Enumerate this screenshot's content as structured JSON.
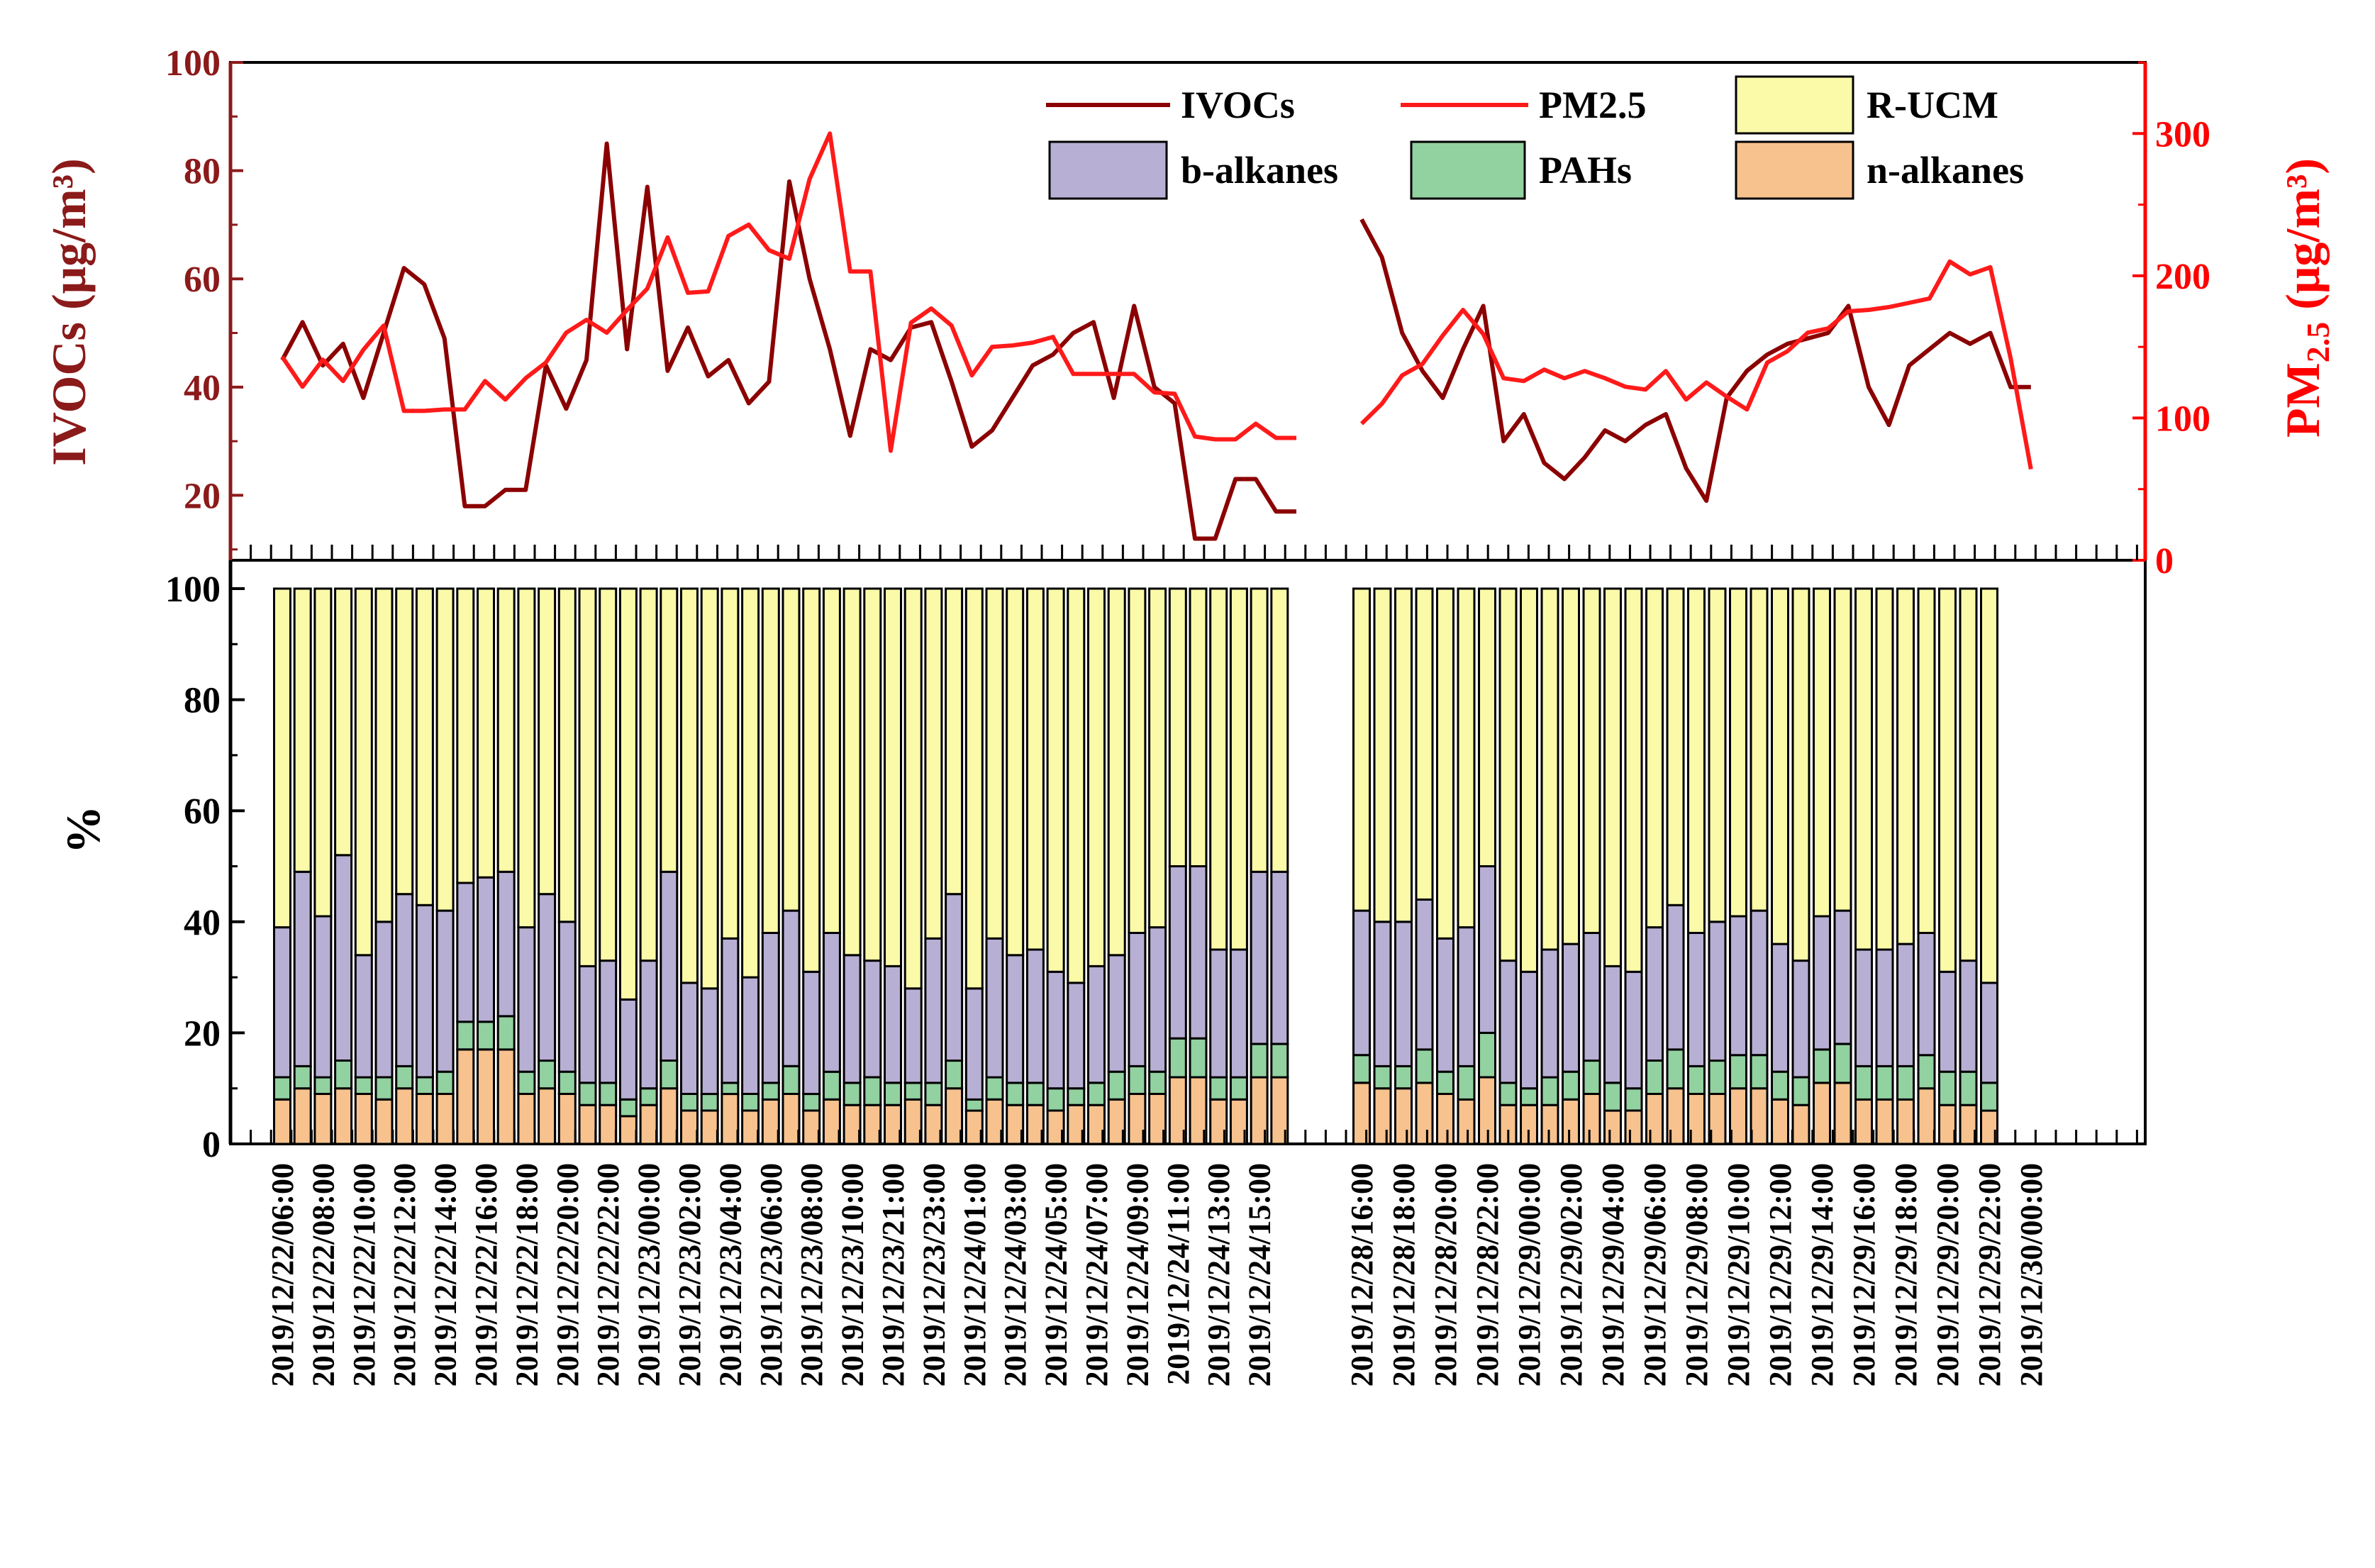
{
  "chart_data": [
    {
      "id": "top",
      "type": "line",
      "ylabel_left": "IVOCs (μg/m³)",
      "ylabel_right_main": "PM",
      "ylabel_right_sub": "2.5",
      "ylabel_right_unit": " (μg/m³)",
      "ylim_left": [
        8,
        100
      ],
      "yticks_left": [
        "20",
        "40",
        "60",
        "80",
        "100"
      ],
      "ylim_right": [
        0,
        350
      ],
      "yticks_right": [
        "0",
        "100",
        "200",
        "300"
      ],
      "colors": {
        "ivocs": "#8b0000",
        "pm25": "#ff1a1a",
        "axis_left": "#8b1a1a",
        "axis_right": "#ff0000"
      },
      "series": [
        {
          "name": "IVOCs",
          "segments": [
            {
              "x_start": 0,
              "values": [
                45,
                52,
                44,
                48,
                38,
                50,
                62,
                59,
                49,
                18,
                18,
                21,
                21,
                44,
                36,
                45,
                85,
                47,
                77,
                43,
                51,
                42,
                45,
                37,
                41,
                78,
                60,
                47,
                31,
                47,
                45,
                51,
                52,
                41,
                29,
                32,
                38,
                44,
                46,
                50,
                52,
                38,
                55,
                40,
                37,
                12,
                12,
                23,
                23,
                17,
                17
              ]
            },
            {
              "x_start": 53,
              "values": [
                71,
                64,
                50,
                43,
                38,
                47,
                55,
                30,
                35,
                26,
                23,
                27,
                32,
                30,
                33,
                35,
                25,
                19,
                38,
                43,
                46,
                48,
                49,
                50,
                55,
                40,
                33,
                44,
                47,
                50,
                48,
                50,
                40,
                40
              ]
            }
          ]
        },
        {
          "name": "PM2.5",
          "segments": [
            {
              "x_start": 0,
              "values": [
                143,
                122,
                141,
                126,
                148,
                165,
                105,
                105,
                106,
                106,
                126,
                113,
                128,
                139,
                160,
                169,
                160,
                176,
                191,
                227,
                188,
                189,
                228,
                236,
                218,
                212,
                268,
                300,
                203,
                203,
                77,
                167,
                177,
                165,
                130,
                150,
                151,
                153,
                157,
                131,
                131,
                131,
                131,
                118,
                117,
                87,
                85,
                85,
                96,
                86,
                86
              ]
            },
            {
              "x_start": 53,
              "values": [
                96,
                110,
                130,
                138,
                158,
                176,
                159,
                128,
                126,
                134,
                128,
                133,
                128,
                122,
                120,
                133,
                113,
                125,
                115,
                106,
                139,
                147,
                160,
                163,
                175,
                176,
                178,
                181,
                184,
                210,
                201,
                206,
                142,
                64
              ]
            }
          ]
        }
      ]
    },
    {
      "id": "bottom",
      "type": "bar",
      "stacked": true,
      "ylabel": "%",
      "ylim": [
        0,
        100
      ],
      "yticks": [
        "0",
        "20",
        "40",
        "60",
        "80",
        "100"
      ],
      "category_labels_left": [
        "2019/12/22/06:00",
        "2019/12/22/08:00",
        "2019/12/22/10:00",
        "2019/12/22/12:00",
        "2019/12/22/14:00",
        "2019/12/22/16:00",
        "2019/12/22/18:00",
        "2019/12/22/20:00",
        "2019/12/22/22:00",
        "2019/12/23/00:00",
        "2019/12/23/02:00",
        "2019/12/23/04:00",
        "2019/12/23/06:00",
        "2019/12/23/08:00",
        "2019/12/23/10:00",
        "2019/12/23/21:00",
        "2019/12/23/23:00",
        "2019/12/24/01:00",
        "2019/12/24/03:00",
        "2019/12/24/05:00",
        "2019/12/24/07:00",
        "2019/12/24/09:00",
        "2019/12/24/11:00",
        "2019/12/24/13:00",
        "2019/12/24/15:00"
      ],
      "category_labels_right": [
        "2019/12/28/16:00",
        "2019/12/28/18:00",
        "2019/12/28/20:00",
        "2019/12/28/22:00",
        "2019/12/29/00:00",
        "2019/12/29/02:00",
        "2019/12/29/04:00",
        "2019/12/29/06:00",
        "2019/12/29/08:00",
        "2019/12/29/10:00",
        "2019/12/29/12:00",
        "2019/12/29/14:00",
        "2019/12/29/16:00",
        "2019/12/29/18:00",
        "2019/12/29/20:00",
        "2019/12/29/22:00",
        "2019/12/30/00:00"
      ],
      "colors": {
        "n-alkanes": "#f7c28e",
        "PAHs": "#92d1a0",
        "b-alkanes": "#b8afd4",
        "R-UCM": "#fafaa8"
      },
      "groups": [
        {
          "bars": [
            [
              8,
              4,
              27
            ],
            [
              10,
              4,
              35
            ],
            [
              9,
              3,
              29
            ],
            [
              10,
              5,
              37
            ],
            [
              9,
              3,
              22
            ],
            [
              8,
              4,
              28
            ],
            [
              10,
              4,
              31
            ],
            [
              9,
              3,
              31
            ],
            [
              9,
              4,
              29
            ],
            [
              17,
              5,
              25
            ],
            [
              17,
              5,
              26
            ],
            [
              17,
              6,
              26
            ],
            [
              9,
              4,
              26
            ],
            [
              10,
              5,
              30
            ],
            [
              9,
              4,
              27
            ],
            [
              7,
              4,
              21
            ],
            [
              7,
              4,
              22
            ],
            [
              5,
              3,
              18
            ],
            [
              7,
              3,
              23
            ],
            [
              10,
              5,
              34
            ],
            [
              6,
              3,
              20
            ],
            [
              6,
              3,
              19
            ],
            [
              9,
              2,
              26
            ],
            [
              6,
              3,
              21
            ],
            [
              8,
              3,
              27
            ],
            [
              9,
              5,
              28
            ],
            [
              6,
              3,
              22
            ],
            [
              8,
              5,
              25
            ],
            [
              7,
              4,
              23
            ],
            [
              7,
              5,
              21
            ],
            [
              7,
              4,
              21
            ],
            [
              8,
              3,
              17
            ],
            [
              7,
              4,
              26
            ],
            [
              10,
              5,
              30
            ],
            [
              6,
              2,
              20
            ],
            [
              8,
              4,
              25
            ],
            [
              7,
              4,
              23
            ],
            [
              7,
              4,
              24
            ],
            [
              6,
              4,
              21
            ],
            [
              7,
              3,
              19
            ],
            [
              7,
              4,
              21
            ],
            [
              8,
              5,
              21
            ],
            [
              9,
              5,
              24
            ],
            [
              9,
              4,
              26
            ],
            [
              12,
              7,
              31
            ],
            [
              12,
              7,
              31
            ],
            [
              8,
              4,
              23
            ],
            [
              8,
              4,
              23
            ],
            [
              12,
              6,
              31
            ],
            [
              12,
              6,
              31
            ]
          ]
        },
        {
          "bars": [
            [
              11,
              5,
              26
            ],
            [
              10,
              4,
              26
            ],
            [
              10,
              4,
              26
            ],
            [
              11,
              6,
              27
            ],
            [
              9,
              4,
              24
            ],
            [
              8,
              6,
              25
            ],
            [
              12,
              8,
              30
            ],
            [
              7,
              4,
              22
            ],
            [
              7,
              3,
              21
            ],
            [
              7,
              5,
              23
            ],
            [
              8,
              5,
              23
            ],
            [
              9,
              6,
              23
            ],
            [
              6,
              5,
              21
            ],
            [
              6,
              4,
              21
            ],
            [
              9,
              6,
              24
            ],
            [
              10,
              7,
              26
            ],
            [
              9,
              5,
              24
            ],
            [
              9,
              6,
              25
            ],
            [
              10,
              6,
              25
            ],
            [
              10,
              6,
              26
            ],
            [
              8,
              5,
              23
            ],
            [
              7,
              5,
              21
            ],
            [
              11,
              6,
              24
            ],
            [
              11,
              7,
              24
            ],
            [
              8,
              6,
              21
            ],
            [
              8,
              6,
              21
            ],
            [
              8,
              6,
              22
            ],
            [
              10,
              6,
              22
            ],
            [
              7,
              6,
              18
            ],
            [
              7,
              6,
              20
            ],
            [
              6,
              5,
              18
            ]
          ]
        }
      ]
    }
  ],
  "legend": {
    "row1": [
      {
        "label": "IVOCs",
        "kind": "line",
        "color": "#8b0000"
      },
      {
        "label": "PM2.5",
        "kind": "line",
        "color": "#ff1a1a"
      },
      {
        "label": "R-UCM",
        "kind": "box",
        "color": "#fafaa8"
      }
    ],
    "row2": [
      {
        "label": "b-alkanes",
        "kind": "box",
        "color": "#b8afd4"
      },
      {
        "label": "PAHs",
        "kind": "box",
        "color": "#92d1a0"
      },
      {
        "label": "n-alkanes",
        "kind": "box",
        "color": "#f7c28e"
      }
    ]
  }
}
